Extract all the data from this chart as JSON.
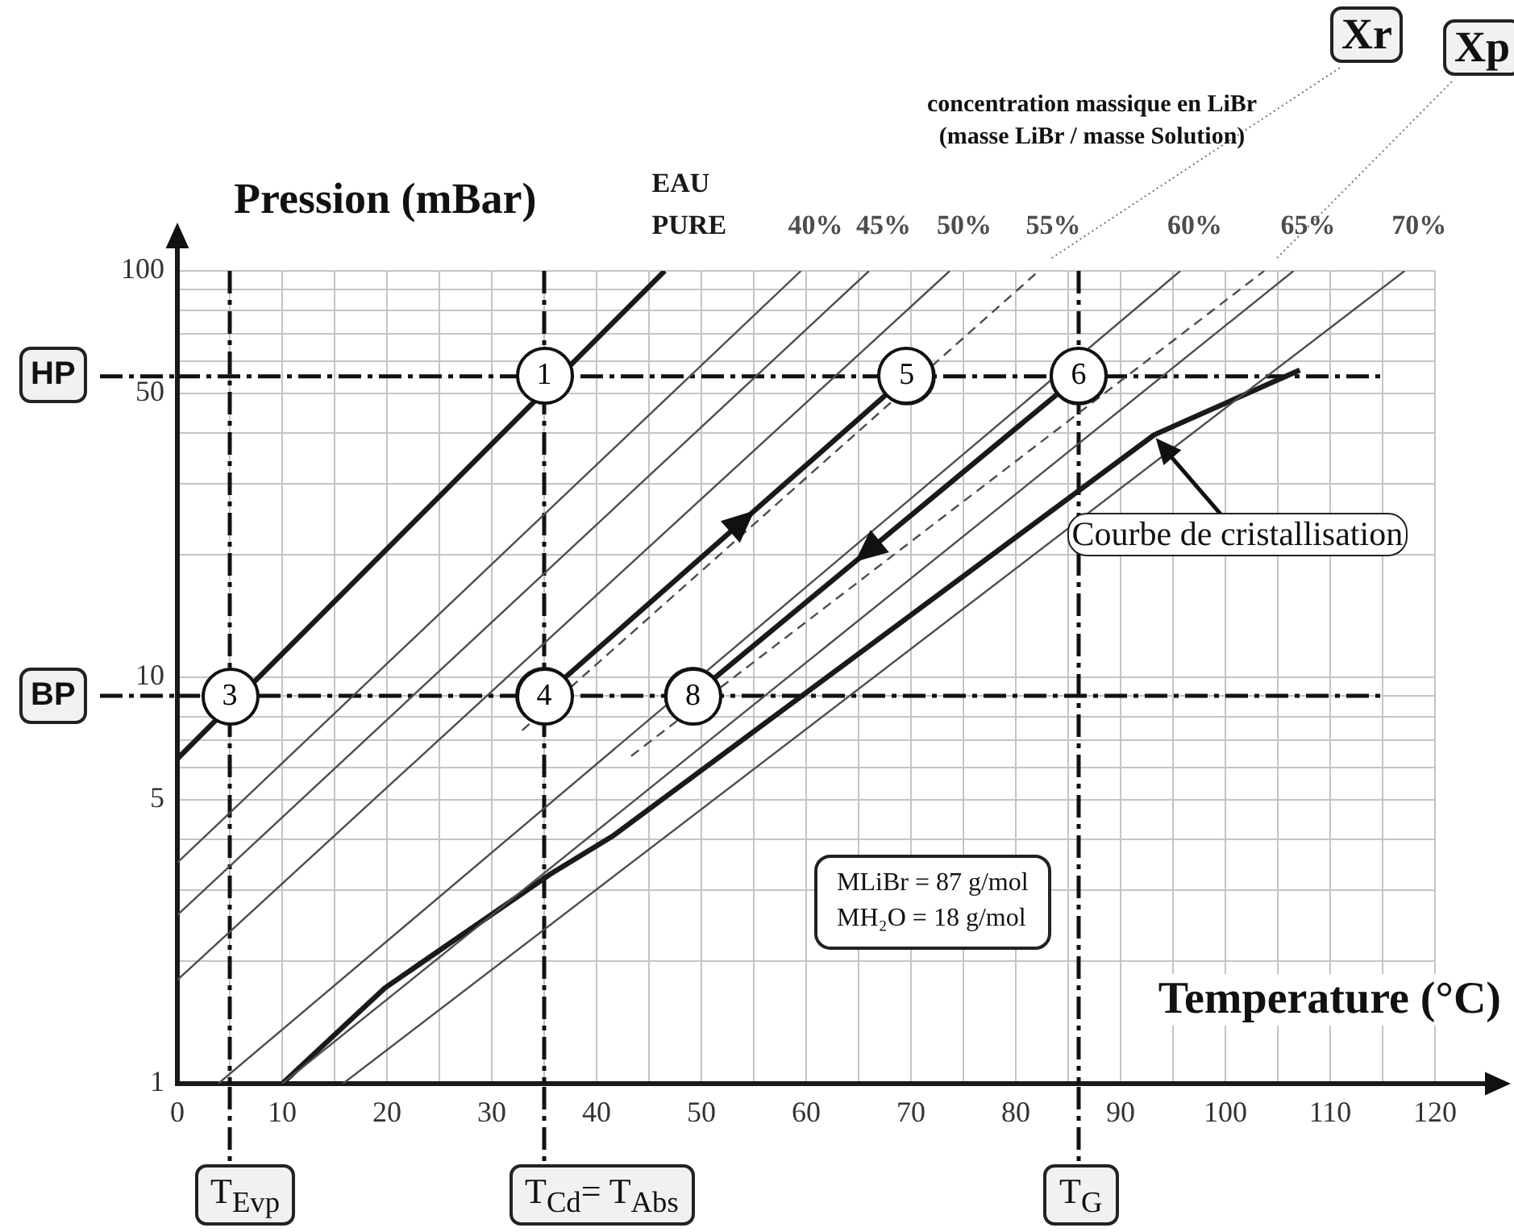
{
  "chart_data": {
    "type": "line",
    "xlabel": "Temperature (°C)",
    "ylabel": "Pression (mBar)",
    "log": true,
    "grid": true,
    "xlim": [
      0,
      120
    ],
    "ylim": [
      1,
      100
    ],
    "xticks": [
      0,
      {
        "value": 5,
        "label": null
      },
      10,
      {
        "value": 15,
        "label": null
      },
      20,
      {
        "value": 25,
        "label": null
      },
      30,
      {
        "value": 35,
        "label": null
      },
      40,
      {
        "value": 45,
        "label": null
      },
      50,
      {
        "value": 55,
        "label": null
      },
      60,
      {
        "value": 65,
        "label": null
      },
      70,
      {
        "value": 75,
        "label": null
      },
      80,
      {
        "value": 85,
        "label": null
      },
      90,
      {
        "value": 95,
        "label": null
      },
      100,
      {
        "value": 105,
        "label": null
      },
      110,
      {
        "value": 115,
        "label": null
      },
      120
    ],
    "yticks": [
      1,
      {
        "value": 2,
        "label": null
      },
      {
        "value": 3,
        "label": null
      },
      {
        "value": 4,
        "label": null
      },
      5,
      {
        "value": 6,
        "label": null
      },
      {
        "value": 7,
        "label": null
      },
      {
        "value": 8,
        "label": null
      },
      {
        "value": 9,
        "label": null
      },
      10,
      {
        "value": 20,
        "label": null
      },
      {
        "value": 30,
        "label": null
      },
      {
        "value": 40,
        "label": null
      },
      50,
      {
        "value": 60,
        "label": null
      },
      {
        "value": 70,
        "label": null
      },
      {
        "value": 80,
        "label": null
      },
      {
        "value": 90,
        "label": null
      },
      100
    ],
    "series": [
      {
        "name": "EAU PURE",
        "color": "#1a1a1a",
        "x": [
          0,
          46.5
        ],
        "values": [
          6.3,
          100
        ]
      },
      {
        "name": "40%",
        "color": "#4d4d4d",
        "x": [
          0,
          59.5
        ],
        "values": [
          3.5,
          100
        ]
      },
      {
        "name": "45%",
        "color": "#4d4d4d",
        "x": [
          0,
          66.0
        ],
        "values": [
          2.6,
          100
        ]
      },
      {
        "name": "50%",
        "color": "#4d4d4d",
        "x": [
          0,
          73.7
        ],
        "values": [
          1.8,
          100
        ]
      },
      {
        "name": "55%",
        "color": "#4d4d4d",
        "x": [
          32.9,
          82.2
        ],
        "values": [
          7.4,
          100
        ],
        "line_style": "dashed"
      },
      {
        "name": "60%",
        "color": "#4d4d4d",
        "x": [
          3.9,
          95.7
        ],
        "values": [
          1,
          100
        ]
      },
      {
        "name": "65%",
        "color": "#4d4d4d",
        "x": [
          10.0,
          106.5
        ],
        "values": [
          1,
          100
        ]
      },
      {
        "name": "70%",
        "color": "#4d4d4d",
        "x": [
          15.8,
          117.1
        ],
        "values": [
          1,
          100
        ]
      },
      {
        "color": "#1a1a1a",
        "x": [
          35,
          69.6
        ],
        "values": [
          9,
          55
        ],
        "marker": "circle"
      },
      {
        "color": "#1a1a1a",
        "x": [
          86,
          49.2
        ],
        "values": [
          55,
          9
        ],
        "marker": "circle"
      },
      {
        "color": "#4d4d4d",
        "x": [
          43.3,
          103.7
        ],
        "values": [
          6.4,
          100
        ],
        "line_style": "dashed"
      },
      {
        "color": "#1a1a1a",
        "x": [
          10,
          19.8,
          35.6,
          41.5,
          93.2,
          107.1
        ],
        "values": [
          1,
          1.72,
          3.28,
          4.06,
          39.5,
          57
        ]
      }
    ],
    "ref_lines": [
      {
        "axis": "y",
        "value": 55,
        "label": "HP",
        "line_style": "dashed"
      },
      {
        "axis": "y",
        "value": 9,
        "label": "BP",
        "line_style": "dashed"
      },
      {
        "axis": "x",
        "value": 5,
        "label": "T$_{Evp}$",
        "line_style": "dashed"
      },
      {
        "axis": "x",
        "value": 35,
        "label": "T$_{Cd}$= T$_{Abs}$",
        "line_style": "dashed"
      },
      {
        "axis": "x",
        "value": 86,
        "label": "T$_{G}$",
        "line_style": "dashed"
      }
    ],
    "annotations": [
      {
        "text": "1",
        "x": 35,
        "y": 55
      },
      {
        "text": "3",
        "x": 5,
        "y": 9
      },
      {
        "text": "4",
        "x": 35,
        "y": 9
      },
      {
        "text": "5",
        "x": 69.6,
        "y": 55
      },
      {
        "text": "6",
        "x": 86,
        "y": 55
      },
      {
        "text": "8",
        "x": 49.2,
        "y": 9
      },
      "Xr",
      "Xp",
      {
        "text": "Courbe de cristallisation",
        "x": 93.2,
        "y": 39.5
      },
      "concentration massique en LiBr\n(masse LiBr / masse Solution)",
      "MLiBr = 87 g/mol\nMH₂O = 18 g/mol"
    ]
  }
}
